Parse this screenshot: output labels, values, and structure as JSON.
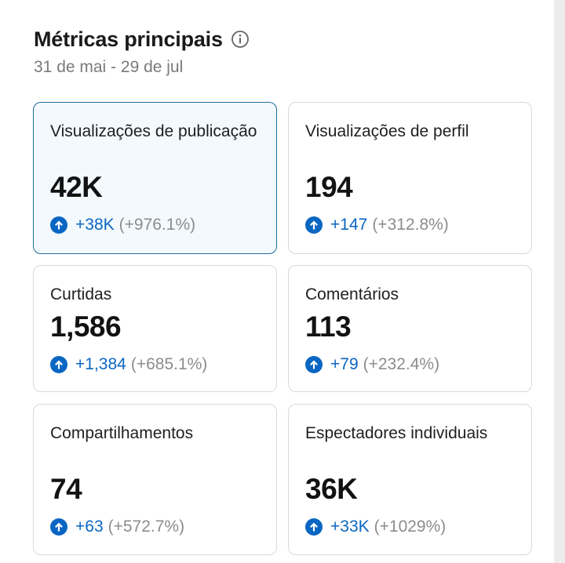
{
  "header": {
    "title": "Métricas principais",
    "date_range": "31 de mai - 29 de jul"
  },
  "icons": {
    "info": "info-icon",
    "change": "arrow-up-circle-icon"
  },
  "colors": {
    "accent": "#0a66c2",
    "selected_border": "#1f6e9e",
    "selected_bg": "#f3f9fd"
  },
  "metrics": [
    {
      "label": "Visualizações de publicação",
      "value": "42K",
      "delta": "+38K",
      "pct": "(+976.1%)",
      "selected": true
    },
    {
      "label": "Visualizações de perfil",
      "value": "194",
      "delta": "+147",
      "pct": "(+312.8%)",
      "selected": false
    },
    {
      "label": "Curtidas",
      "value": "1,586",
      "delta": "+1,384",
      "pct": "(+685.1%)",
      "selected": false
    },
    {
      "label": "Comentários",
      "value": "113",
      "delta": "+79",
      "pct": "(+232.4%)",
      "selected": false
    },
    {
      "label": "Compartilhamentos",
      "value": "74",
      "delta": "+63",
      "pct": "(+572.7%)",
      "selected": false
    },
    {
      "label": "Espectadores individuais",
      "value": "36K",
      "delta": "+33K",
      "pct": "(+1029%)",
      "selected": false
    }
  ]
}
